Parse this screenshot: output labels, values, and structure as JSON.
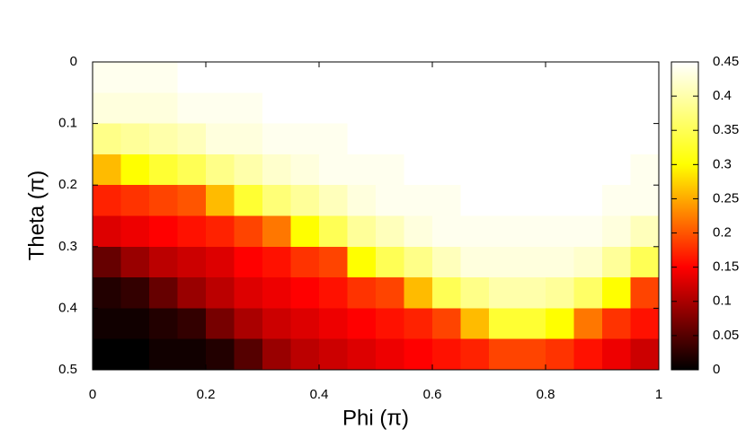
{
  "chart_data": {
    "type": "heatmap",
    "xlabel": "Phi (π)",
    "ylabel": "Theta (π)",
    "xlim": [
      0,
      1
    ],
    "ylim": [
      0,
      0.5
    ],
    "y_inverted": true,
    "xticks": [
      0,
      0.2,
      0.4,
      0.6,
      0.8,
      1
    ],
    "yticks": [
      0,
      0.1,
      0.2,
      0.3,
      0.4,
      0.5
    ],
    "x": [
      0.025,
      0.075,
      0.125,
      0.175,
      0.225,
      0.275,
      0.325,
      0.375,
      0.425,
      0.475,
      0.525,
      0.575,
      0.625,
      0.675,
      0.725,
      0.775,
      0.825,
      0.875,
      0.925,
      0.975
    ],
    "y": [
      0.025,
      0.075,
      0.125,
      0.175,
      0.225,
      0.275,
      0.325,
      0.375,
      0.425,
      0.475
    ],
    "values": [
      [
        0.44,
        0.44,
        0.44,
        0.45,
        0.45,
        0.45,
        0.45,
        0.45,
        0.45,
        0.45,
        0.45,
        0.45,
        0.45,
        0.45,
        0.45,
        0.45,
        0.45,
        0.45,
        0.45,
        0.45
      ],
      [
        0.43,
        0.43,
        0.43,
        0.44,
        0.44,
        0.44,
        0.45,
        0.45,
        0.45,
        0.45,
        0.45,
        0.45,
        0.45,
        0.45,
        0.45,
        0.45,
        0.45,
        0.45,
        0.45,
        0.45
      ],
      [
        0.38,
        0.39,
        0.4,
        0.41,
        0.43,
        0.43,
        0.44,
        0.44,
        0.44,
        0.45,
        0.45,
        0.45,
        0.45,
        0.45,
        0.45,
        0.45,
        0.45,
        0.45,
        0.45,
        0.45
      ],
      [
        0.26,
        0.3,
        0.33,
        0.35,
        0.38,
        0.4,
        0.42,
        0.43,
        0.44,
        0.44,
        0.44,
        0.45,
        0.45,
        0.45,
        0.45,
        0.45,
        0.45,
        0.45,
        0.45,
        0.44
      ],
      [
        0.17,
        0.18,
        0.19,
        0.2,
        0.26,
        0.33,
        0.37,
        0.39,
        0.41,
        0.43,
        0.44,
        0.44,
        0.44,
        0.45,
        0.45,
        0.45,
        0.45,
        0.45,
        0.44,
        0.44
      ],
      [
        0.13,
        0.14,
        0.15,
        0.16,
        0.17,
        0.19,
        0.22,
        0.3,
        0.35,
        0.39,
        0.41,
        0.43,
        0.44,
        0.44,
        0.44,
        0.44,
        0.44,
        0.44,
        0.43,
        0.41
      ],
      [
        0.06,
        0.09,
        0.11,
        0.12,
        0.13,
        0.15,
        0.16,
        0.18,
        0.19,
        0.3,
        0.35,
        0.38,
        0.41,
        0.43,
        0.43,
        0.43,
        0.43,
        0.42,
        0.39,
        0.35
      ],
      [
        0.02,
        0.03,
        0.06,
        0.09,
        0.11,
        0.13,
        0.14,
        0.15,
        0.16,
        0.18,
        0.19,
        0.26,
        0.35,
        0.38,
        0.4,
        0.4,
        0.39,
        0.36,
        0.3,
        0.19
      ],
      [
        0.01,
        0.01,
        0.02,
        0.03,
        0.07,
        0.1,
        0.12,
        0.13,
        0.14,
        0.15,
        0.16,
        0.17,
        0.19,
        0.26,
        0.33,
        0.33,
        0.3,
        0.22,
        0.18,
        0.16
      ],
      [
        0.0,
        0.0,
        0.01,
        0.01,
        0.02,
        0.05,
        0.09,
        0.11,
        0.12,
        0.13,
        0.14,
        0.15,
        0.16,
        0.17,
        0.19,
        0.19,
        0.18,
        0.16,
        0.14,
        0.12
      ]
    ],
    "colormap": [
      "#000000",
      "#ff0000",
      "#ffff00",
      "#ffffff"
    ],
    "clim": [
      0,
      0.45
    ],
    "cticks": [
      0,
      0.05,
      0.1,
      0.15,
      0.2,
      0.25,
      0.3,
      0.35,
      0.4,
      0.45
    ]
  }
}
